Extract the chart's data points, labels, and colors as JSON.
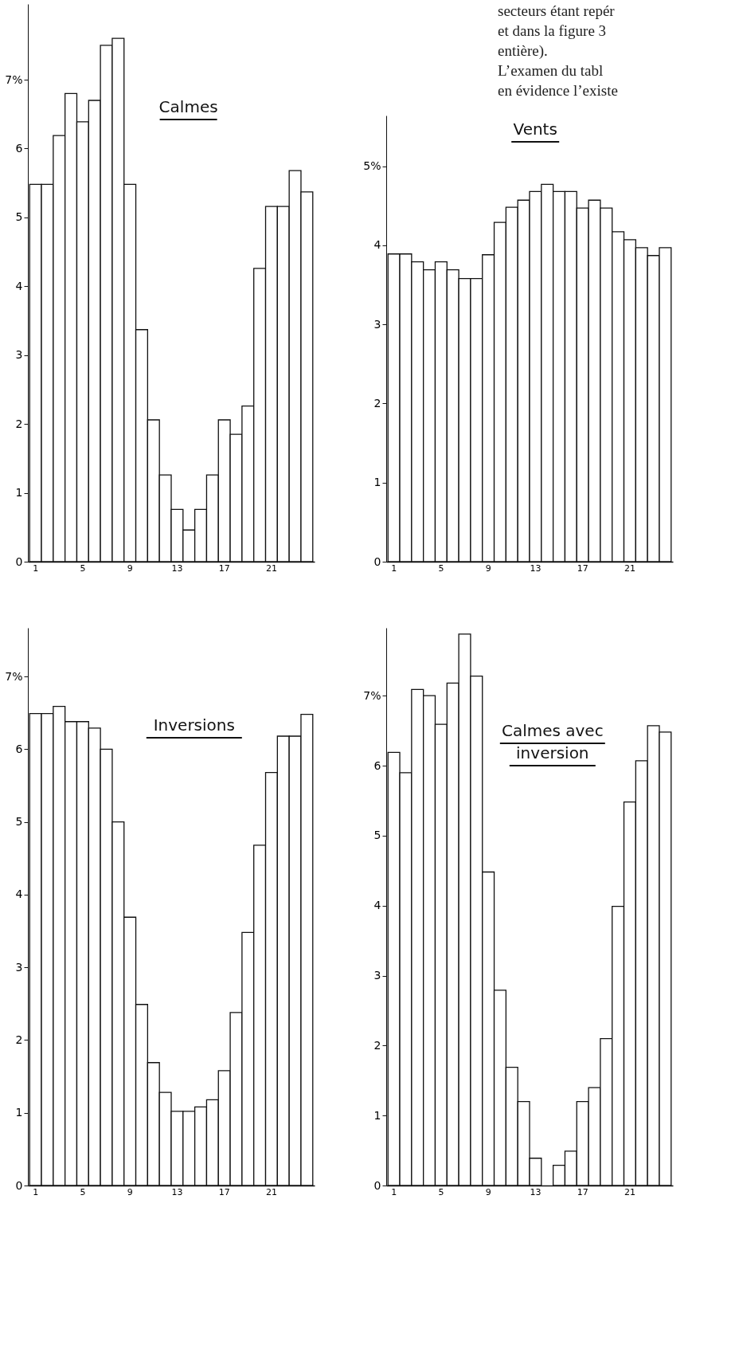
{
  "chart_data": [
    {
      "type": "bar",
      "title": "Calmes",
      "categories": [
        "1",
        null,
        null,
        null,
        "5",
        null,
        null,
        null,
        "9",
        null,
        null,
        null,
        "13",
        null,
        null,
        null,
        "17",
        null,
        null,
        null,
        "21",
        null,
        null,
        null
      ],
      "color": "#ffffff",
      "values": [
        5.48,
        5.48,
        6.19,
        6.8,
        6.39,
        6.7,
        7.5,
        7.6,
        5.48,
        3.37,
        2.06,
        1.26,
        0.76,
        0.46,
        0.76,
        1.26,
        2.06,
        1.85,
        2.26,
        4.26,
        5.16,
        5.16,
        5.68,
        5.37
      ],
      "ylim": [
        0,
        8.1
      ],
      "yticks": [
        0,
        1,
        2,
        3,
        4,
        5,
        6,
        {
          "value": 7,
          "label": "7%"
        }
      ]
    },
    {
      "type": "bar",
      "title": "Vents",
      "categories": [
        "1",
        null,
        null,
        null,
        "5",
        null,
        null,
        null,
        "9",
        null,
        null,
        null,
        "13",
        null,
        null,
        null,
        "17",
        null,
        null,
        null,
        "21",
        null,
        null,
        null
      ],
      "color": "#ffffff",
      "values": [
        3.89,
        3.89,
        3.79,
        3.69,
        3.79,
        3.69,
        3.58,
        3.58,
        3.88,
        4.29,
        4.48,
        4.57,
        4.68,
        4.77,
        4.68,
        4.68,
        4.47,
        4.57,
        4.47,
        4.17,
        4.07,
        3.97,
        3.87,
        3.97
      ],
      "ylim": [
        0,
        5.64
      ],
      "yticks": [
        0,
        1,
        2,
        3,
        4,
        {
          "value": 5,
          "label": "5%"
        }
      ],
      "annotations": [
        "secteurs étant repér",
        "et dans la figure 3",
        "entière).",
        "    L’examen du tabl",
        "en évidence l’existe"
      ]
    },
    {
      "type": "bar",
      "title": "Inversions",
      "categories": [
        "1",
        null,
        null,
        null,
        "5",
        null,
        null,
        null,
        "9",
        null,
        null,
        null,
        "13",
        null,
        null,
        null,
        "17",
        null,
        null,
        null,
        "21",
        null,
        null,
        null
      ],
      "color": "#ffffff",
      "values": [
        6.49,
        6.49,
        6.59,
        6.38,
        6.38,
        6.29,
        6.0,
        5.0,
        3.69,
        2.49,
        1.69,
        1.28,
        1.02,
        1.02,
        1.08,
        1.18,
        1.58,
        2.38,
        3.48,
        4.68,
        5.68,
        6.18,
        6.18,
        6.48
      ],
      "ylim": [
        0,
        7.67
      ],
      "yticks": [
        0,
        1,
        2,
        3,
        4,
        5,
        6,
        {
          "value": 7,
          "label": "7%"
        }
      ]
    },
    {
      "type": "bar",
      "title": "Calmes avec inversion",
      "categories": [
        "1",
        null,
        null,
        null,
        "5",
        null,
        null,
        null,
        "9",
        null,
        null,
        null,
        "13",
        null,
        null,
        null,
        "17",
        null,
        null,
        null,
        "21",
        null,
        null,
        null
      ],
      "color": "#ffffff",
      "values": [
        6.19,
        5.9,
        7.09,
        7.0,
        6.59,
        7.18,
        7.88,
        7.28,
        4.48,
        2.79,
        1.69,
        1.2,
        0.39,
        0,
        0.29,
        0.49,
        1.2,
        1.4,
        2.1,
        3.99,
        5.48,
        6.07,
        6.57,
        6.48
      ],
      "ylim": [
        0,
        7.97
      ],
      "yticks": [
        0,
        1,
        2,
        3,
        4,
        5,
        6,
        {
          "value": 7,
          "label": "7%"
        }
      ]
    }
  ]
}
